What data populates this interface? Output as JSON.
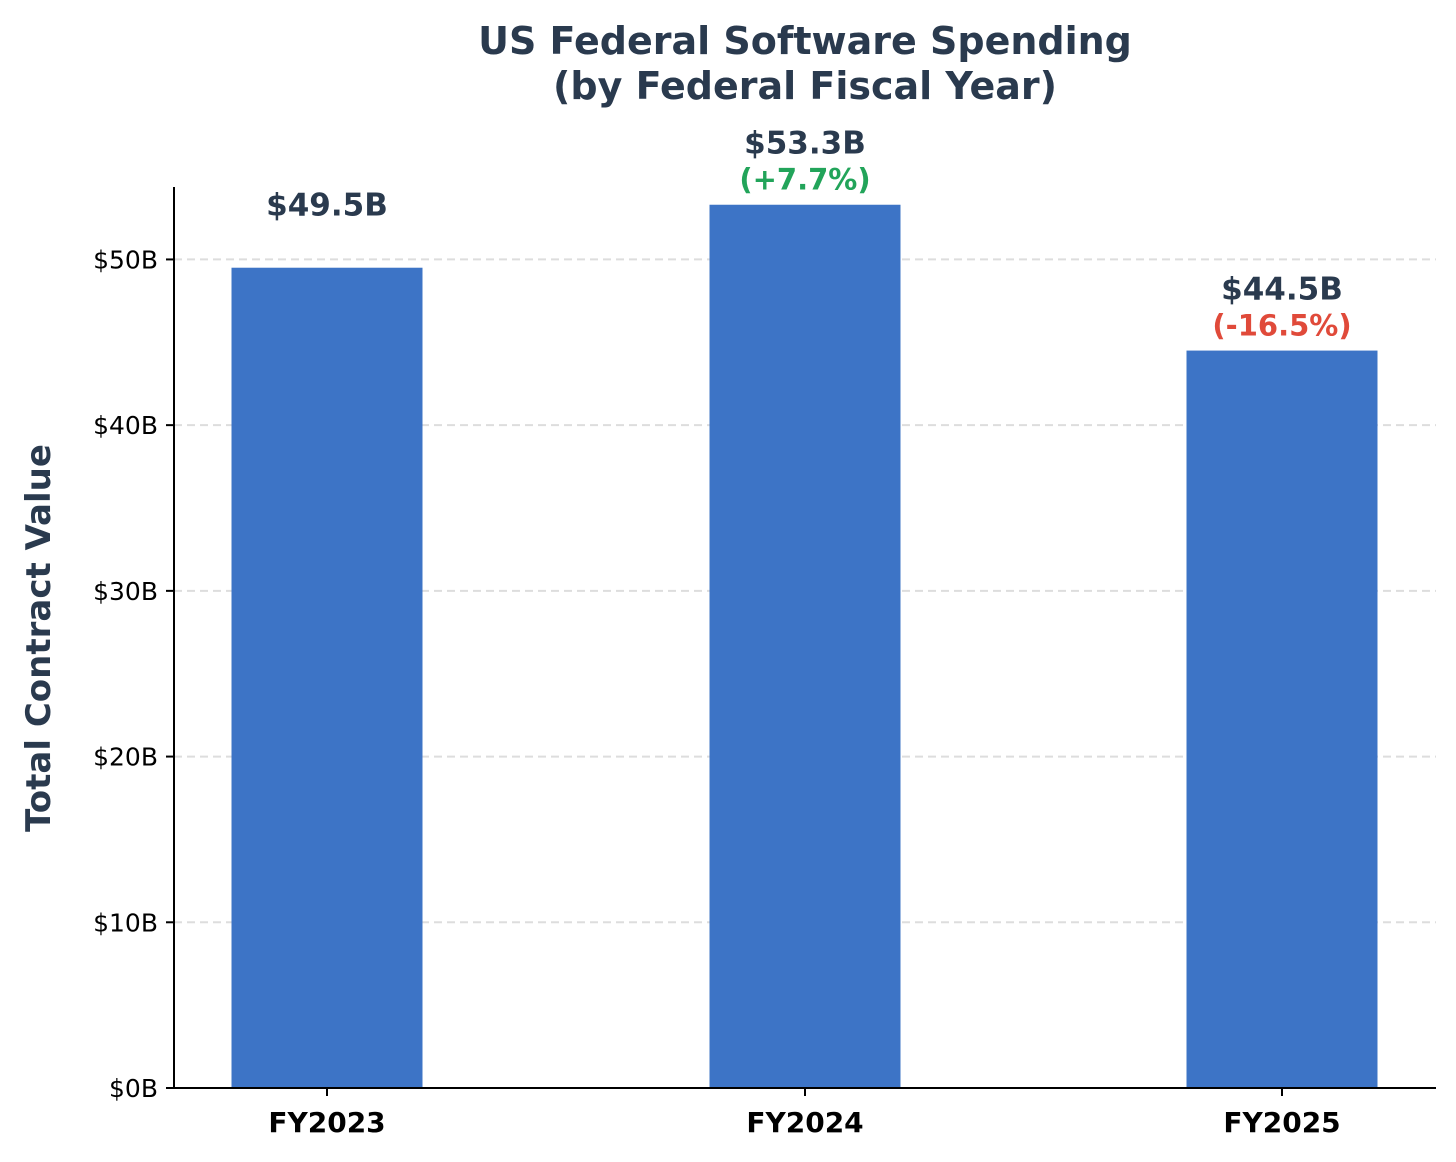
{
  "colors": {
    "bar": "#3d74c6",
    "text_dark": "#2a3a4e",
    "positive": "#22a45a",
    "negative": "#e04a3a",
    "grid": "#dddddd",
    "axis": "#000000"
  },
  "chart_data": {
    "type": "bar",
    "title": [
      "US Federal Software Spending",
      "(by Federal Fiscal Year)"
    ],
    "xlabel": "",
    "ylabel": "Total Contract Value",
    "ylim": [
      0,
      56
    ],
    "yticks": [
      0,
      10,
      20,
      30,
      40,
      50
    ],
    "ytick_labels": [
      "$0B",
      "$10B",
      "$20B",
      "$30B",
      "$40B",
      "$50B"
    ],
    "grid": "horizontal dashed",
    "categories": [
      "FY2023",
      "FY2024",
      "FY2025"
    ],
    "values": [
      49.5,
      53.3,
      44.5
    ],
    "value_labels": [
      "$49.5B",
      "$53.3B",
      "$44.5B"
    ],
    "change_labels": [
      "",
      "(+7.7%)",
      "(-16.5%)"
    ],
    "change_direction": [
      "",
      "up",
      "down"
    ]
  }
}
